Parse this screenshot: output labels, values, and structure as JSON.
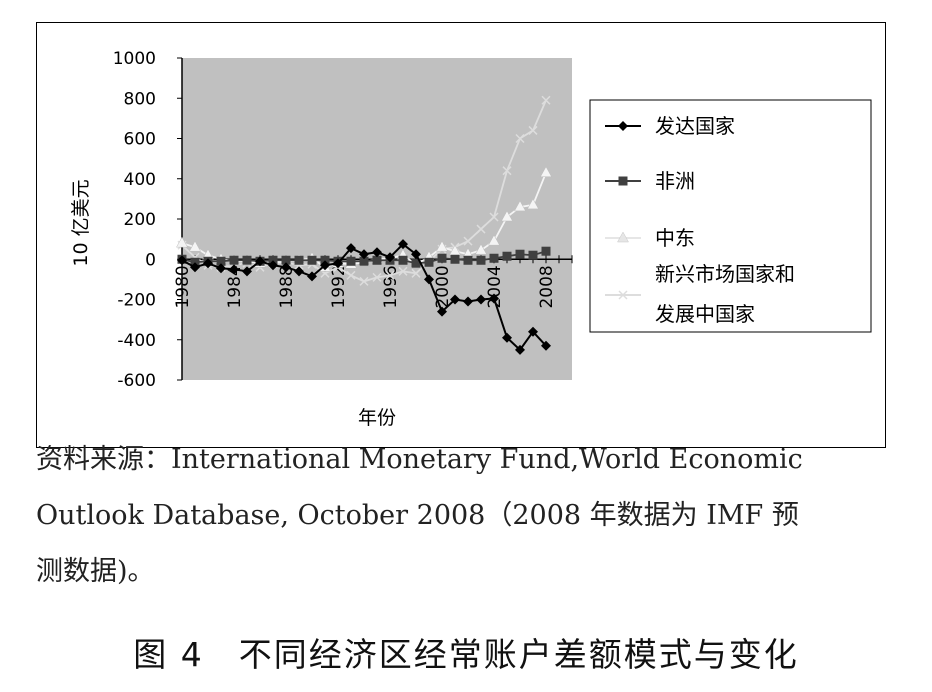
{
  "chart_data": {
    "type": "line",
    "title": "",
    "xlabel": "年份",
    "ylabel": "10 亿美元",
    "x": [
      1980,
      1981,
      1982,
      1983,
      1984,
      1985,
      1986,
      1987,
      1988,
      1989,
      1990,
      1991,
      1992,
      1993,
      1994,
      1995,
      1996,
      1997,
      1998,
      1999,
      2000,
      2001,
      2002,
      2003,
      2004,
      2005,
      2006,
      2007,
      2008
    ],
    "xlim": [
      1980,
      2010
    ],
    "ylim": [
      -600,
      1000
    ],
    "ytick_labels": [
      "1000",
      "800",
      "600",
      "400",
      "200",
      "0",
      "-200",
      "-400",
      "-600"
    ],
    "ytick_values": [
      1000,
      800,
      600,
      400,
      200,
      0,
      -200,
      -400,
      -600
    ],
    "xtick_labels": [
      "1980",
      "1984",
      "1988",
      "1992",
      "1996",
      "2000",
      "2004",
      "2008"
    ],
    "xtick_values": [
      1980,
      1984,
      1988,
      1992,
      1996,
      2000,
      2004,
      2008
    ],
    "grid": false,
    "plot_background": "#c0c0c0",
    "legend_position": "right",
    "series": [
      {
        "name": "发达国家",
        "color": "#000000",
        "marker": "diamond",
        "values": [
          -5,
          -40,
          -20,
          -45,
          -50,
          -60,
          -10,
          -30,
          -40,
          -60,
          -85,
          -30,
          -20,
          55,
          25,
          35,
          10,
          75,
          25,
          -100,
          -260,
          -200,
          -210,
          -200,
          -195,
          -390,
          -450,
          -360,
          -430
        ]
      },
      {
        "name": "非洲",
        "color": "#404040",
        "marker": "square",
        "values": [
          0,
          -15,
          -10,
          -10,
          -5,
          -5,
          -10,
          -5,
          -5,
          -5,
          -5,
          -5,
          -10,
          -10,
          -10,
          -5,
          -5,
          -5,
          -20,
          -15,
          5,
          0,
          -5,
          -5,
          5,
          15,
          25,
          20,
          40
        ]
      },
      {
        "name": "中东",
        "color": "#f4f4f4",
        "marker": "triangle",
        "values": [
          80,
          60,
          20,
          0,
          -10,
          -10,
          -20,
          -15,
          -10,
          -5,
          5,
          -40,
          -20,
          -25,
          -15,
          0,
          5,
          20,
          -25,
          10,
          60,
          40,
          25,
          45,
          90,
          210,
          260,
          270,
          430
        ]
      },
      {
        "name": "新兴市场国家和发展中国家",
        "color": "#dddddd",
        "marker": "x",
        "values": [
          70,
          10,
          -30,
          -40,
          -30,
          -20,
          -40,
          -20,
          -15,
          -30,
          -25,
          -70,
          -40,
          -80,
          -110,
          -90,
          -80,
          -60,
          -70,
          -10,
          50,
          60,
          90,
          150,
          210,
          440,
          600,
          640,
          790
        ]
      }
    ]
  },
  "legend": {
    "items": [
      "发达国家",
      "非洲",
      "中东",
      "新兴市场国家和发展中国家"
    ]
  },
  "source": {
    "line1": "资料来源：International Monetary Fund,World Economic",
    "line2": "Outlook Database, October 2008（2008 年数据为 IMF 预",
    "line3": "测数据)。"
  },
  "caption": "图 4　不同经济区经常账户差额模式与变化"
}
